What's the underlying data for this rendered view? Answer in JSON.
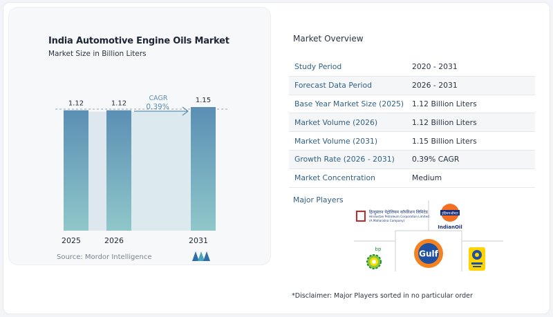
{
  "chart_data": {
    "type": "bar",
    "title": "India Automotive Engine Oils Market",
    "subtitle": "Market Size in Billion Liters",
    "categories": [
      "2025",
      "2026",
      "2031"
    ],
    "values": [
      1.12,
      1.12,
      1.15
    ],
    "data_labels": [
      "1.12",
      "1.12",
      "1.15"
    ],
    "annotation": {
      "label": "CAGR",
      "value": "0.39%"
    },
    "source": "Source: Mordor Intelligence",
    "colors": {
      "bar_top": "#5b8fb4",
      "bar_bottom": "#8fc7ca",
      "cagr_band": "#dceaf0",
      "annotation": "#5b8fb4"
    }
  },
  "overview": {
    "title": "Market Overview",
    "rows": [
      {
        "label": "Study Period",
        "value": "2020 - 2031"
      },
      {
        "label": "Forecast Data Period",
        "value": "2026 - 2031"
      },
      {
        "label": "Base Year Market Size (2025)",
        "value": "1.12 Billion Liters"
      },
      {
        "label": "Market Volume (2026)",
        "value": "1.12 Billion Liters"
      },
      {
        "label": "Market Volume (2031)",
        "value": "1.15 Billion Liters"
      },
      {
        "label": "Growth Rate (2026 - 2031)",
        "value": "0.39% CAGR"
      },
      {
        "label": "Market Concentration",
        "value": "Medium"
      }
    ]
  },
  "players": {
    "title": "Major Players",
    "hp_line1": "हिन्दुस्तान पेट्रोलियम कॉर्पोरेशन लिमिटेड",
    "hp_line2": "Hindustan Petroleum Corporation Limited",
    "hp_line3": "(A Maharatna Company)",
    "io_badge": "इंडियनऑयल",
    "io_name": "IndianOil",
    "bp_name": "bp",
    "gulf_name": "Gulf"
  },
  "disclaimer": "*Disclaimer: Major Players sorted in no particular order"
}
